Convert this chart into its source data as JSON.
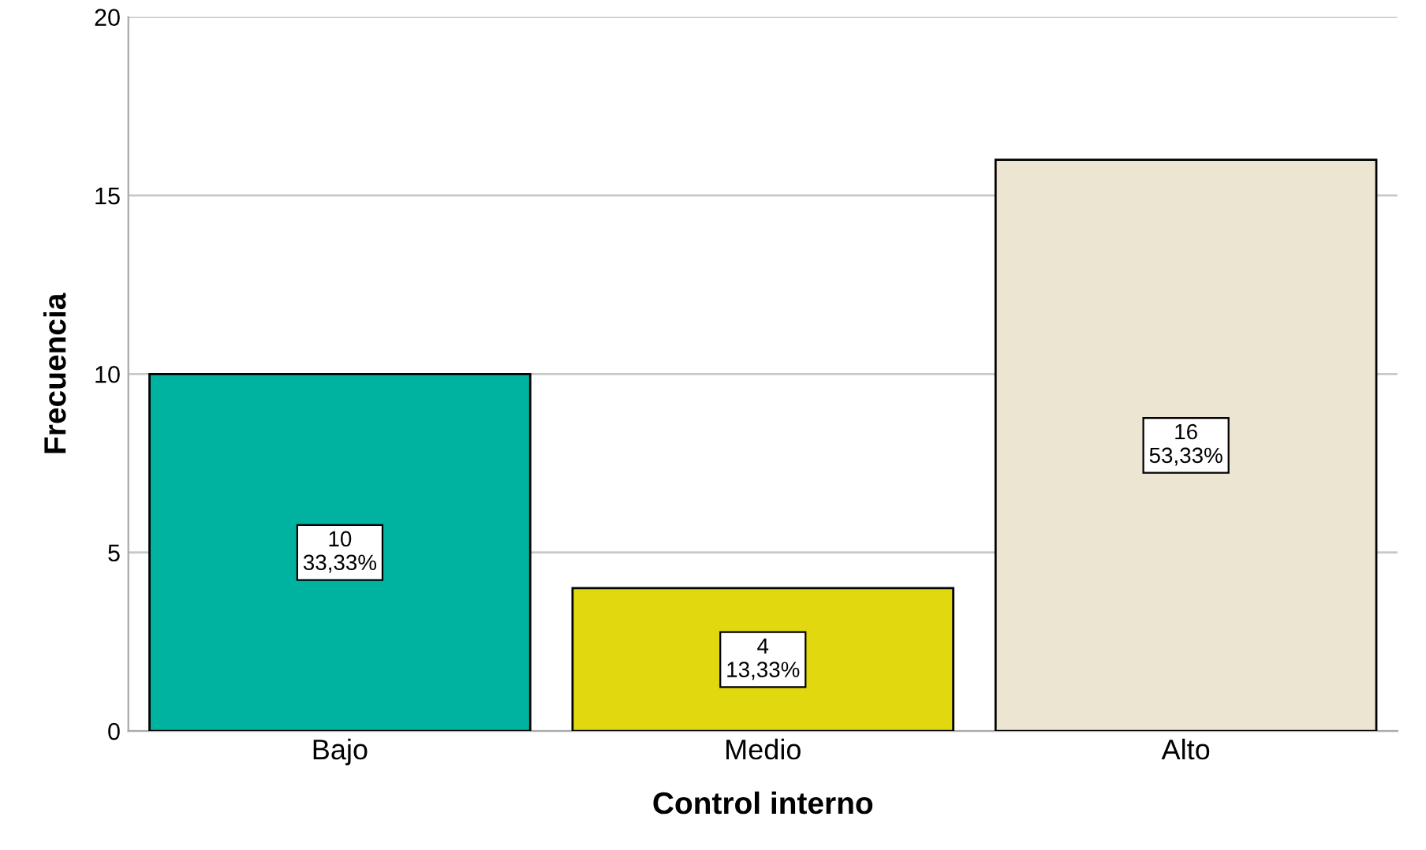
{
  "chart_data": {
    "type": "bar",
    "xlabel": "Control interno",
    "ylabel": "Frecuencia",
    "categories": [
      "Bajo",
      "Medio",
      "Alto"
    ],
    "values": [
      10,
      4,
      16
    ],
    "colors": [
      "#00b2a0",
      "#e2d80f",
      "#ebe5d1"
    ],
    "value_labels": [
      "10\n33,33%",
      "4\n13,33%",
      "16\n53,33%"
    ],
    "ylim": [
      0,
      20
    ],
    "yticks": [
      0,
      5,
      10,
      15,
      20
    ],
    "grid": "y"
  }
}
